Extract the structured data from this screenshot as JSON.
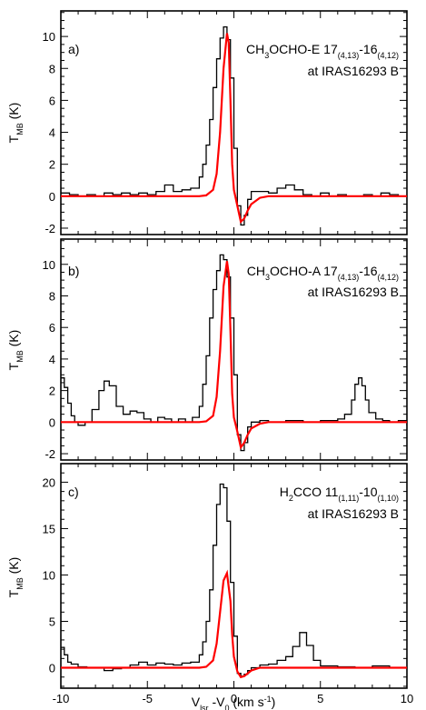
{
  "figure": {
    "xlabel_main": "V",
    "xlabel_sub1": "lsr",
    "xlabel_mid": " -V",
    "xlabel_sub2": "0",
    "xlabel_units": " (km s",
    "xlabel_sup": "-1",
    "xlabel_close": ")",
    "x_tick_labels": [
      "-10",
      "-5",
      "0",
      "5",
      "10"
    ],
    "ylabel_main": "T",
    "ylabel_sub": "MB",
    "ylabel_units": " (K)"
  },
  "colors": {
    "observed": "#000000",
    "model": "#ff0000",
    "frame": "#000000"
  },
  "chart_data": [
    {
      "type": "line",
      "panel_label": "a)",
      "title_species": "CH",
      "title_sub1": "3",
      "title_species2": "OCHO-E 17",
      "title_sub2": "(4,13)",
      "title_mid": "-16",
      "title_sub3": "(4,12)",
      "subtitle": "at IRAS16293 B",
      "xlim": [
        -10,
        10
      ],
      "ylim": [
        -2.4,
        11.6
      ],
      "yticks": [
        -2,
        0,
        2,
        4,
        6,
        8,
        10
      ],
      "ytick_labels": [
        "-2",
        "0",
        "2",
        "4",
        "6",
        "8",
        "10"
      ],
      "series": [
        {
          "role": "observed",
          "x": [
            -10,
            -9.5,
            -9,
            -8.5,
            -8,
            -7.5,
            -7,
            -6.5,
            -6,
            -5.5,
            -5,
            -4.5,
            -4,
            -3.5,
            -3,
            -2.5,
            -2,
            -1.8,
            -1.6,
            -1.4,
            -1.2,
            -1.0,
            -0.8,
            -0.6,
            -0.4,
            -0.2,
            0,
            0.2,
            0.4,
            0.6,
            0.8,
            1.0,
            1.5,
            2,
            2.5,
            3,
            3.5,
            4,
            4.5,
            5,
            5.5,
            6,
            6.5,
            7,
            7.5,
            8,
            8.5,
            9,
            9.5,
            10
          ],
          "y": [
            0.2,
            0.1,
            0.0,
            0.1,
            0.0,
            0.2,
            0.1,
            0.2,
            0.1,
            0.2,
            0.1,
            0.3,
            0.7,
            0.3,
            0.4,
            0.5,
            1.2,
            2.0,
            3.2,
            4.8,
            6.8,
            8.6,
            9.9,
            10.6,
            9.8,
            7.4,
            3.0,
            -0.6,
            -1.8,
            -1.2,
            -0.2,
            0.3,
            0.3,
            0.2,
            0.5,
            0.7,
            0.4,
            0.1,
            0.0,
            0.2,
            0.0,
            0.1,
            0.0,
            0.0,
            0.1,
            0.0,
            0.2,
            0.1,
            0.0,
            0.1
          ]
        },
        {
          "role": "model",
          "x": [
            -10,
            -3,
            -2,
            -1.6,
            -1.2,
            -1.0,
            -0.8,
            -0.6,
            -0.4,
            -0.3,
            -0.2,
            -0.1,
            0,
            0.2,
            0.4,
            0.6,
            0.8,
            1.0,
            1.5,
            2,
            3,
            10
          ],
          "y": [
            0,
            0,
            0,
            0.05,
            0.4,
            1.4,
            4.0,
            8.0,
            10.2,
            9.6,
            6.0,
            2.0,
            0.4,
            -0.6,
            -1.6,
            -1.4,
            -0.9,
            -0.5,
            -0.1,
            0,
            0,
            0
          ]
        }
      ]
    },
    {
      "type": "line",
      "panel_label": "b)",
      "title_species": "CH",
      "title_sub1": "3",
      "title_species2": "OCHO-A 17",
      "title_sub2": "(4,13)",
      "title_mid": "-16",
      "title_sub3": "(4,12)",
      "subtitle": "at IRAS16293 B",
      "xlim": [
        -10,
        10
      ],
      "ylim": [
        -2.4,
        11.6
      ],
      "yticks": [
        -2,
        0,
        2,
        4,
        6,
        8,
        10
      ],
      "ytick_labels": [
        "-2",
        "0",
        "2",
        "4",
        "6",
        "8",
        "10"
      ],
      "series": [
        {
          "role": "observed",
          "x": [
            -10,
            -9.8,
            -9.6,
            -9.4,
            -9.2,
            -9.0,
            -8.6,
            -8.2,
            -7.8,
            -7.5,
            -7.2,
            -6.8,
            -6.4,
            -6.0,
            -5.6,
            -5.2,
            -4.8,
            -4.4,
            -4.0,
            -3.6,
            -3.2,
            -2.8,
            -2.4,
            -2.0,
            -1.8,
            -1.6,
            -1.4,
            -1.2,
            -1.0,
            -0.8,
            -0.6,
            -0.4,
            -0.2,
            0,
            0.2,
            0.4,
            0.6,
            0.8,
            1.0,
            1.5,
            2,
            3,
            4,
            5,
            6,
            6.4,
            6.8,
            7.0,
            7.2,
            7.4,
            7.6,
            7.8,
            8.2,
            8.6,
            9,
            9.5,
            10
          ],
          "y": [
            2.8,
            2.2,
            1.2,
            0.4,
            0.0,
            -0.2,
            0.0,
            0.8,
            2.0,
            2.6,
            2.3,
            1.0,
            0.5,
            0.7,
            0.6,
            0.2,
            0.0,
            0.3,
            0.2,
            0.0,
            0.2,
            0.0,
            0.3,
            1.0,
            2.4,
            4.2,
            6.6,
            8.4,
            9.6,
            10.6,
            10.3,
            9.2,
            6.6,
            3.0,
            -0.8,
            -1.8,
            -1.3,
            -0.3,
            0.0,
            0.1,
            0.0,
            0.1,
            0.0,
            0.1,
            0.2,
            0.5,
            1.4,
            2.4,
            2.8,
            2.3,
            1.4,
            0.6,
            0.2,
            0.1,
            0.0,
            0.1,
            -0.2
          ]
        },
        {
          "role": "model",
          "x": [
            -10,
            -3,
            -2,
            -1.6,
            -1.2,
            -1.0,
            -0.8,
            -0.6,
            -0.4,
            -0.3,
            -0.2,
            -0.1,
            0,
            0.2,
            0.4,
            0.6,
            0.8,
            1.0,
            1.5,
            2,
            3,
            10
          ],
          "y": [
            0,
            0,
            0,
            0.05,
            0.4,
            1.6,
            4.5,
            8.6,
            10.2,
            9.4,
            5.8,
            1.8,
            0.3,
            -0.6,
            -1.6,
            -1.3,
            -0.8,
            -0.4,
            -0.1,
            0,
            0,
            0
          ]
        }
      ]
    },
    {
      "type": "line",
      "panel_label": "c)",
      "title_species": "H",
      "title_sub1": "2",
      "title_species2": "CCO 11",
      "title_sub2": "(1,11)",
      "title_mid": "-10",
      "title_sub3": "(1,10)",
      "subtitle": "at IRAS16293 B",
      "xlim": [
        -10,
        10
      ],
      "ylim": [
        -2.2,
        22
      ],
      "yticks": [
        0,
        5,
        10,
        15,
        20
      ],
      "ytick_labels": [
        "0",
        "5",
        "10",
        "15",
        "20"
      ],
      "series": [
        {
          "role": "observed",
          "x": [
            -10,
            -9.8,
            -9.6,
            -9.4,
            -9.0,
            -8.5,
            -8,
            -7.5,
            -7,
            -6.5,
            -6,
            -5.5,
            -5,
            -4.5,
            -4,
            -3.5,
            -3,
            -2.5,
            -2.0,
            -1.8,
            -1.6,
            -1.4,
            -1.2,
            -1.0,
            -0.8,
            -0.6,
            -0.4,
            -0.2,
            0,
            0.2,
            0.4,
            0.6,
            0.8,
            1.0,
            1.5,
            2,
            2.5,
            3,
            3.4,
            3.8,
            4.2,
            4.6,
            5,
            6,
            7,
            8,
            9,
            10
          ],
          "y": [
            2.2,
            1.4,
            0.6,
            0.4,
            0.1,
            0.0,
            0.0,
            -0.3,
            -0.1,
            0.0,
            0.3,
            0.6,
            0.3,
            0.5,
            0.4,
            0.3,
            0.5,
            0.6,
            1.4,
            2.8,
            5.0,
            8.4,
            13.2,
            17.6,
            19.8,
            19.4,
            15.8,
            9.2,
            3.4,
            -0.6,
            -0.9,
            -0.7,
            -0.3,
            0.0,
            0.3,
            0.4,
            0.8,
            1.2,
            2.3,
            3.8,
            2.4,
            0.8,
            0.2,
            0.1,
            0.0,
            0.2,
            0.0,
            0.1
          ]
        },
        {
          "role": "model",
          "x": [
            -10,
            -3,
            -2,
            -1.6,
            -1.2,
            -1.0,
            -0.8,
            -0.6,
            -0.4,
            -0.2,
            -0.1,
            0,
            0.2,
            0.4,
            0.6,
            0.8,
            1.0,
            1.5,
            2,
            3,
            10
          ],
          "y": [
            0,
            0,
            0,
            0.1,
            0.8,
            2.6,
            6.0,
            9.4,
            10.2,
            7.2,
            3.6,
            1.2,
            -0.4,
            -1.0,
            -0.9,
            -0.6,
            -0.3,
            0.0,
            0,
            0,
            0
          ]
        }
      ]
    }
  ]
}
